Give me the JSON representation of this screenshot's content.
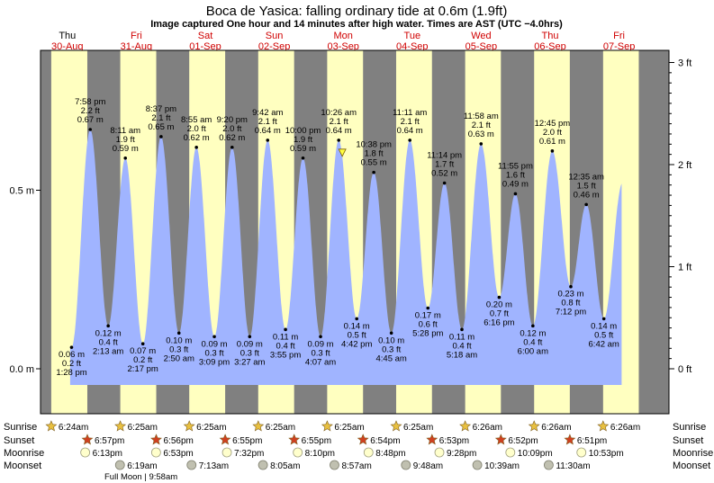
{
  "chart_data": {
    "type": "area",
    "title": "Boca de Yasica: falling  ordinary tide at 0.6m (1.9ft)",
    "subtitle": "Image captured One hour and 14 minutes after high water. Times are AST (UTC −4.0hrs)",
    "ylim": [
      -0.07,
      0.93
    ],
    "left_axis": {
      "ticks": [
        0.0,
        0.5
      ],
      "labels": [
        "0.0 m",
        "0.5 m"
      ]
    },
    "right_axis": {
      "ticks": [
        0,
        1,
        2,
        3
      ],
      "labels": [
        "0 ft",
        "1 ft",
        "2 ft",
        "3 ft"
      ]
    },
    "days": [
      {
        "dow": "Thu",
        "date": "30-Aug",
        "weekend": false
      },
      {
        "dow": "Fri",
        "date": "31-Aug",
        "weekend": true
      },
      {
        "dow": "Sat",
        "date": "01-Sep",
        "weekend": true
      },
      {
        "dow": "Sun",
        "date": "02-Sep",
        "weekend": true
      },
      {
        "dow": "Mon",
        "date": "03-Sep",
        "weekend": true
      },
      {
        "dow": "Tue",
        "date": "04-Sep",
        "weekend": true
      },
      {
        "dow": "Wed",
        "date": "05-Sep",
        "weekend": true
      },
      {
        "dow": "Thu",
        "date": "06-Sep",
        "weekend": true
      },
      {
        "dow": "Fri",
        "date": "07-Sep",
        "weekend": true
      }
    ],
    "tides": [
      {
        "time": "1:28 pm",
        "m": 0.06,
        "ft": 0.2,
        "type": "low",
        "day": 0
      },
      {
        "time": "7:58 pm",
        "m": 0.67,
        "ft": 2.2,
        "type": "high",
        "day": 0
      },
      {
        "time": "2:13 am",
        "m": 0.12,
        "ft": 0.4,
        "type": "low",
        "day": 1
      },
      {
        "time": "8:11 am",
        "m": 0.59,
        "ft": 1.9,
        "type": "high",
        "day": 1
      },
      {
        "time": "2:17 pm",
        "m": 0.07,
        "ft": 0.2,
        "type": "low",
        "day": 1
      },
      {
        "time": "8:37 pm",
        "m": 0.65,
        "ft": 2.1,
        "type": "high",
        "day": 1
      },
      {
        "time": "2:50 am",
        "m": 0.1,
        "ft": 0.3,
        "type": "low",
        "day": 2
      },
      {
        "time": "8:55 am",
        "m": 0.62,
        "ft": 2.0,
        "type": "high",
        "day": 2
      },
      {
        "time": "3:09 pm",
        "m": 0.09,
        "ft": 0.3,
        "type": "low",
        "day": 2
      },
      {
        "time": "9:20 pm",
        "m": 0.62,
        "ft": 2.0,
        "type": "high",
        "day": 2
      },
      {
        "time": "3:27 am",
        "m": 0.09,
        "ft": 0.3,
        "type": "low",
        "day": 3
      },
      {
        "time": "9:42 am",
        "m": 0.64,
        "ft": 2.1,
        "type": "high",
        "day": 3
      },
      {
        "time": "3:55 pm",
        "m": 0.11,
        "ft": 0.4,
        "type": "low",
        "day": 3
      },
      {
        "time": "10:00 pm",
        "m": 0.59,
        "ft": 1.9,
        "type": "high",
        "day": 3
      },
      {
        "time": "4:07 am",
        "m": 0.09,
        "ft": 0.3,
        "type": "low",
        "day": 4
      },
      {
        "time": "10:26 am",
        "m": 0.64,
        "ft": 2.1,
        "type": "high",
        "day": 4
      },
      {
        "time": "4:42 pm",
        "m": 0.14,
        "ft": 0.5,
        "type": "low",
        "day": 4
      },
      {
        "time": "10:38 pm",
        "m": 0.55,
        "ft": 1.8,
        "type": "high",
        "day": 4
      },
      {
        "time": "4:45 am",
        "m": 0.1,
        "ft": 0.3,
        "type": "low",
        "day": 5
      },
      {
        "time": "11:11 am",
        "m": 0.64,
        "ft": 2.1,
        "type": "high",
        "day": 5
      },
      {
        "time": "5:28 pm",
        "m": 0.17,
        "ft": 0.6,
        "type": "low",
        "day": 5
      },
      {
        "time": "11:14 pm",
        "m": 0.52,
        "ft": 1.7,
        "type": "high",
        "day": 5
      },
      {
        "time": "5:18 am",
        "m": 0.11,
        "ft": 0.4,
        "type": "low",
        "day": 6
      },
      {
        "time": "11:58 am",
        "m": 0.63,
        "ft": 2.1,
        "type": "high",
        "day": 6
      },
      {
        "time": "6:16 pm",
        "m": 0.2,
        "ft": 0.7,
        "type": "low",
        "day": 6
      },
      {
        "time": "11:55 pm",
        "m": 0.49,
        "ft": 1.6,
        "type": "high",
        "day": 6
      },
      {
        "time": "6:00 am",
        "m": 0.12,
        "ft": 0.4,
        "type": "low",
        "day": 7
      },
      {
        "time": "12:45 pm",
        "m": 0.61,
        "ft": 2.0,
        "type": "high",
        "day": 7
      },
      {
        "time": "7:12 pm",
        "m": 0.23,
        "ft": 0.8,
        "type": "low",
        "day": 7
      },
      {
        "time": "12:35 am",
        "m": 0.46,
        "ft": 1.5,
        "type": "high",
        "day": 8
      },
      {
        "time": "6:42 am",
        "m": 0.14,
        "ft": 0.5,
        "type": "low",
        "day": 8
      }
    ],
    "current": {
      "day": 4,
      "time": "11:40 am",
      "m": 0.6,
      "ft": 1.9,
      "state": "falling"
    },
    "sun_moon": {
      "labels": {
        "sunrise": "Sunrise",
        "sunset": "Sunset",
        "moonrise": "Moonrise",
        "moonset": "Moonset"
      },
      "sunrise": [
        "6:24am",
        "6:25am",
        "6:25am",
        "6:25am",
        "6:25am",
        "6:25am",
        "6:26am",
        "6:26am",
        "6:26am"
      ],
      "sunset": [
        "6:57pm",
        "6:56pm",
        "6:55pm",
        "6:55pm",
        "6:54pm",
        "6:53pm",
        "6:52pm",
        "6:51pm"
      ],
      "moonrise": [
        "6:13pm",
        "6:53pm",
        "7:32pm",
        "8:10pm",
        "8:48pm",
        "9:28pm",
        "10:09pm",
        "10:53pm"
      ],
      "moonset": [
        "6:19am",
        "7:13am",
        "8:05am",
        "8:57am",
        "9:48am",
        "10:39am",
        "11:30am"
      ],
      "full_moon_note": "Full Moon | 9:58am"
    },
    "colors": {
      "night": "#808080",
      "day": "#ffffc0",
      "water": "#a0b4ff",
      "day_header": "#d00000",
      "sunrise_star": "#e8c040",
      "sunset_star": "#d04020",
      "moonrise": "#ffffcc",
      "moonset": "#c0c0b0"
    }
  }
}
